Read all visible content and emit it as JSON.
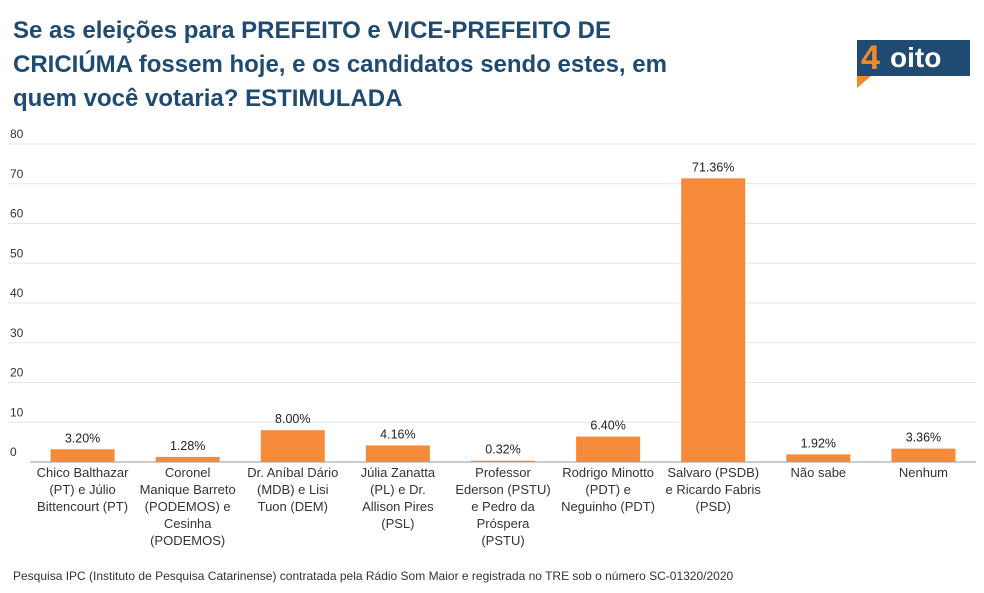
{
  "title": "Se as eleições para PREFEITO e VICE-PREFEITO DE CRICIÚMA fossem hoje, e os candidatos sendo estes, em quem você votaria? ESTIMULADA",
  "logo": {
    "number": "4",
    "text": "oito",
    "brand_color": "#f28a2c",
    "box_color": "#1f4b73"
  },
  "footer": "Pesquisa IPC (Instituto de Pesquisa Catarinense) contratada pela Rádio Som Maior e registrada no TRE sob o número SC-01320/2020",
  "chart_data": {
    "type": "bar",
    "categories": [
      [
        "Chico Balthazar",
        "(PT) e Júlio",
        "Bittencourt (PT)"
      ],
      [
        "Coronel",
        "Manique Barreto",
        "(PODEMOS) e",
        "Cesinha",
        "(PODEMOS)"
      ],
      [
        "Dr. Aníbal Dário",
        "(MDB) e Lisi",
        "Tuon (DEM)"
      ],
      [
        "Júlia Zanatta",
        "(PL) e Dr.",
        "Allison Pires",
        "(PSL)"
      ],
      [
        "Professor",
        "Ederson (PSTU)",
        "e Pedro da",
        "Próspera",
        "(PSTU)"
      ],
      [
        "Rodrigo Minotto",
        "(PDT) e",
        "Neguinho (PDT)"
      ],
      [
        "Salvaro (PSDB)",
        "e Ricardo Fabris",
        "(PSD)"
      ],
      [
        "Não sabe"
      ],
      [
        "Nenhum"
      ]
    ],
    "values": [
      3.2,
      1.28,
      8.0,
      4.16,
      0.32,
      6.4,
      71.36,
      1.92,
      3.36
    ],
    "labels": [
      "3.20%",
      "1.28%",
      "8.00%",
      "4.16%",
      "0.32%",
      "6.40%",
      "71.36%",
      "1.92%",
      "3.36%"
    ],
    "yticks": [
      "0",
      "10",
      "20",
      "30",
      "40",
      "50",
      "60",
      "70",
      "80"
    ],
    "ylim": [
      0,
      80
    ],
    "bar_color": "#f58a3a",
    "grid": true,
    "legend": false
  }
}
